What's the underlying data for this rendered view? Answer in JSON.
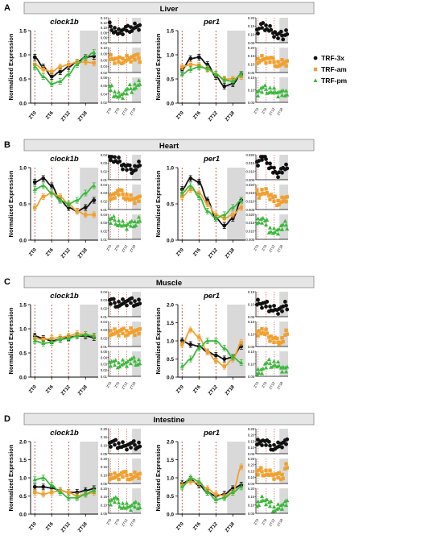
{
  "colors": {
    "trf3x": "#111111",
    "trfam": "#f0a030",
    "trfpm": "#3cb83c",
    "shade": "#d9d9d9",
    "dash": "#c0392b",
    "header_bg": "#e6e6e6"
  },
  "legend": [
    {
      "label": "TRF-3x",
      "color": "#111111",
      "marker": "circle"
    },
    {
      "label": "TRF-am",
      "color": "#f0a030",
      "marker": "square"
    },
    {
      "label": "TRF-pm",
      "color": "#3cb83c",
      "marker": "triangle"
    }
  ],
  "panels": [
    {
      "letter": "A",
      "tissue": "Liver",
      "genes": [
        {
          "name": "clock1b",
          "ylim": [
            0,
            1.5
          ],
          "yticks": [
            "0.0",
            "0.5",
            "1.0",
            "1.5"
          ],
          "x": [
            0,
            3,
            6,
            9,
            12,
            15,
            18,
            21
          ],
          "series": [
            {
              "key": "trf3x",
              "values": [
                0.95,
                0.75,
                0.55,
                0.65,
                0.75,
                0.85,
                0.95,
                0.97
              ]
            },
            {
              "key": "trfam",
              "values": [
                0.8,
                0.7,
                0.65,
                0.75,
                0.8,
                0.85,
                0.85,
                0.83
              ]
            },
            {
              "key": "trfpm",
              "values": [
                0.75,
                0.55,
                0.4,
                0.45,
                0.6,
                0.8,
                0.95,
                1.05
              ]
            }
          ],
          "mini": [
            {
              "ticks": [
                "0.14",
                "0.12",
                "0.10",
                "0.08",
                "0.06",
                "0.04"
              ],
              "color": "#111111"
            },
            {
              "ticks": [
                "0.10",
                "0.08",
                "0.06",
                "0.04",
                "0.02"
              ],
              "color": "#f0a030"
            },
            {
              "ticks": [
                "0.08",
                "0.06",
                "0.04",
                "0.02"
              ],
              "color": "#3cb83c"
            }
          ]
        },
        {
          "name": "per1",
          "ylim": [
            0,
            1.5
          ],
          "yticks": [
            "0.0",
            "0.5",
            "1.0",
            "1.5"
          ],
          "x": [
            0,
            3,
            6,
            9,
            12,
            15,
            18,
            21
          ],
          "series": [
            {
              "key": "trf3x",
              "values": [
                0.7,
                0.92,
                0.95,
                0.8,
                0.55,
                0.35,
                0.4,
                0.6
              ]
            },
            {
              "key": "trfam",
              "values": [
                0.75,
                0.8,
                0.78,
                0.7,
                0.6,
                0.5,
                0.5,
                0.55
              ]
            },
            {
              "key": "trfpm",
              "values": [
                0.6,
                0.7,
                0.75,
                0.72,
                0.6,
                0.48,
                0.45,
                0.6
              ]
            }
          ],
          "mini": [
            {
              "ticks": [
                "0.20",
                "0.15",
                "0.10",
                "0.05"
              ],
              "color": "#111111"
            },
            {
              "ticks": [
                "0.20",
                "0.15",
                "0.10",
                "0.05"
              ],
              "color": "#f0a030"
            },
            {
              "ticks": [
                "0.15",
                "0.10",
                "0.05"
              ],
              "color": "#3cb83c"
            }
          ]
        }
      ]
    },
    {
      "letter": "B",
      "tissue": "Heart",
      "genes": [
        {
          "name": "clock1b",
          "ylim": [
            0,
            1.0
          ],
          "yticks": [
            "0.0",
            "0.5",
            "1.0"
          ],
          "x": [
            0,
            3,
            6,
            9,
            12,
            15,
            18,
            21
          ],
          "series": [
            {
              "key": "trf3x",
              "values": [
                0.8,
                0.85,
                0.75,
                0.55,
                0.45,
                0.4,
                0.45,
                0.55
              ]
            },
            {
              "key": "trfam",
              "values": [
                0.45,
                0.6,
                0.65,
                0.6,
                0.5,
                0.4,
                0.35,
                0.35
              ]
            },
            {
              "key": "trfpm",
              "values": [
                0.7,
                0.75,
                0.65,
                0.55,
                0.5,
                0.55,
                0.65,
                0.75
              ]
            }
          ],
          "mini": [
            {
              "ticks": [
                "0.04",
                "0.03",
                "0.02",
                "0.01"
              ],
              "color": "#111111"
            },
            {
              "ticks": [
                "0.04",
                "0.03",
                "0.02",
                "0.01"
              ],
              "color": "#f0a030"
            },
            {
              "ticks": [
                "0.04",
                "0.03",
                "0.02",
                "0.01"
              ],
              "color": "#3cb83c"
            }
          ]
        },
        {
          "name": "per1",
          "ylim": [
            0,
            1.0
          ],
          "yticks": [
            "0.0",
            "0.5",
            "1.0"
          ],
          "x": [
            0,
            3,
            6,
            9,
            12,
            15,
            18,
            21
          ],
          "series": [
            {
              "key": "trf3x",
              "values": [
                0.7,
                0.85,
                0.8,
                0.55,
                0.3,
                0.2,
                0.3,
                0.55
              ]
            },
            {
              "key": "trfam",
              "values": [
                0.6,
                0.7,
                0.65,
                0.5,
                0.35,
                0.3,
                0.35,
                0.45
              ]
            },
            {
              "key": "trfpm",
              "values": [
                0.65,
                0.75,
                0.6,
                0.4,
                0.3,
                0.35,
                0.45,
                0.55
              ]
            }
          ],
          "mini": [
            {
              "ticks": [
                "0.020",
                "0.015",
                "0.010",
                "0.005"
              ],
              "color": "#111111"
            },
            {
              "ticks": [
                "0.020",
                "0.015",
                "0.010",
                "0.005"
              ],
              "color": "#f0a030"
            },
            {
              "ticks": [
                "0.020",
                "0.015",
                "0.010",
                "0.005"
              ],
              "color": "#3cb83c"
            }
          ]
        }
      ]
    },
    {
      "letter": "C",
      "tissue": "Muscle",
      "genes": [
        {
          "name": "clock1b",
          "ylim": [
            0,
            1.5
          ],
          "yticks": [
            "0.0",
            "0.5",
            "1.0",
            "1.5"
          ],
          "x": [
            0,
            3,
            6,
            9,
            12,
            15,
            18,
            21
          ],
          "series": [
            {
              "key": "trf3x",
              "values": [
                0.85,
                0.8,
                0.75,
                0.78,
                0.82,
                0.85,
                0.85,
                0.82
              ]
            },
            {
              "key": "trfam",
              "values": [
                0.8,
                0.78,
                0.8,
                0.82,
                0.85,
                0.9,
                0.88,
                0.85
              ]
            },
            {
              "key": "trfpm",
              "values": [
                0.75,
                0.7,
                0.72,
                0.78,
                0.8,
                0.85,
                0.88,
                0.85
              ]
            }
          ],
          "mini": [
            {
              "ticks": [
                "0.04",
                "0.03",
                "0.02",
                "0.01"
              ],
              "color": "#111111"
            },
            {
              "ticks": [
                "0.04",
                "0.03",
                "0.02",
                "0.01"
              ],
              "color": "#f0a030"
            },
            {
              "ticks": [
                "0.05",
                "0.04",
                "0.03",
                "0.02",
                "0.01"
              ],
              "color": "#3cb83c"
            }
          ]
        },
        {
          "name": "per1",
          "ylim": [
            0,
            2.0
          ],
          "yticks": [
            "0.0",
            "0.5",
            "1.0",
            "1.5",
            "2.0"
          ],
          "x": [
            0,
            3,
            6,
            9,
            12,
            15,
            18,
            21
          ],
          "series": [
            {
              "key": "trf3x",
              "values": [
                1.0,
                0.9,
                0.85,
                0.7,
                0.6,
                0.5,
                0.55,
                0.85
              ]
            },
            {
              "key": "trfam",
              "values": [
                0.9,
                1.3,
                1.1,
                0.7,
                0.45,
                0.3,
                0.5,
                0.95
              ]
            },
            {
              "key": "trfpm",
              "values": [
                0.3,
                0.5,
                0.8,
                1.0,
                1.0,
                0.8,
                0.55,
                0.4
              ]
            }
          ],
          "mini": [
            {
              "ticks": [
                "0.15",
                "0.10",
                "0.05"
              ],
              "color": "#111111"
            },
            {
              "ticks": [
                "0.15",
                "0.10",
                "0.05"
              ],
              "color": "#f0a030"
            },
            {
              "ticks": [
                "0.15",
                "0.10",
                "0.05"
              ],
              "color": "#3cb83c"
            }
          ]
        }
      ]
    },
    {
      "letter": "D",
      "tissue": "Intestine",
      "genes": [
        {
          "name": "clock1b",
          "ylim": [
            0,
            2.0
          ],
          "yticks": [
            "0.0",
            "0.5",
            "1.0",
            "1.5",
            "2.0"
          ],
          "x": [
            0,
            3,
            6,
            9,
            12,
            15,
            18,
            21
          ],
          "series": [
            {
              "key": "trf3x",
              "values": [
                0.75,
                0.75,
                0.72,
                0.65,
                0.6,
                0.6,
                0.65,
                0.7
              ]
            },
            {
              "key": "trfam",
              "values": [
                0.6,
                0.55,
                0.6,
                0.65,
                0.6,
                0.5,
                0.55,
                0.6
              ]
            },
            {
              "key": "trfpm",
              "values": [
                0.95,
                1.0,
                0.8,
                0.6,
                0.45,
                0.45,
                0.55,
                0.65
              ]
            }
          ],
          "mini": [
            {
              "ticks": [
                "0.20",
                "0.15",
                "0.10",
                "0.05"
              ],
              "color": "#111111"
            },
            {
              "ticks": [
                "0.20",
                "0.15",
                "0.10",
                "0.05"
              ],
              "color": "#f0a030"
            },
            {
              "ticks": [
                "0.20",
                "0.15",
                "0.10",
                "0.05"
              ],
              "color": "#3cb83c"
            }
          ]
        },
        {
          "name": "per1",
          "ylim": [
            0,
            2.0
          ],
          "yticks": [
            "0.0",
            "0.5",
            "1.0",
            "1.5",
            "2.0"
          ],
          "x": [
            0,
            3,
            6,
            9,
            12,
            15,
            18,
            21
          ],
          "series": [
            {
              "key": "trf3x",
              "values": [
                0.85,
                0.95,
                0.8,
                0.6,
                0.5,
                0.55,
                0.7,
                0.8
              ]
            },
            {
              "key": "trfam",
              "values": [
                0.8,
                0.9,
                0.85,
                0.7,
                0.55,
                0.5,
                0.6,
                1.3
              ]
            },
            {
              "key": "trfpm",
              "values": [
                0.75,
                1.0,
                0.9,
                0.6,
                0.4,
                0.45,
                0.6,
                0.75
              ]
            }
          ],
          "mini": [
            {
              "ticks": [
                "0.25",
                "0.20",
                "0.15",
                "0.10",
                "0.05"
              ],
              "color": "#111111"
            },
            {
              "ticks": [
                "0.25",
                "0.20",
                "0.15",
                "0.10",
                "0.05"
              ],
              "color": "#f0a030"
            },
            {
              "ticks": [
                "0.20",
                "0.15",
                "0.10",
                "0.05"
              ],
              "color": "#3cb83c"
            }
          ]
        }
      ]
    }
  ],
  "axis": {
    "ylabel": "Normalized Expression",
    "xticks": [
      "ZT0",
      "ZT6",
      "ZT12",
      "ZT18"
    ],
    "mini_xticks": [
      "ZT0",
      "ZT6",
      "ZT12",
      "ZT18"
    ]
  },
  "chart_data": {
    "type": "scatter",
    "note_type": "multi-panel",
    "x_unit": "ZT",
    "legend_placement": "right",
    "series_names": [
      "TRF-3x",
      "TRF-am",
      "TRF-pm"
    ]
  }
}
